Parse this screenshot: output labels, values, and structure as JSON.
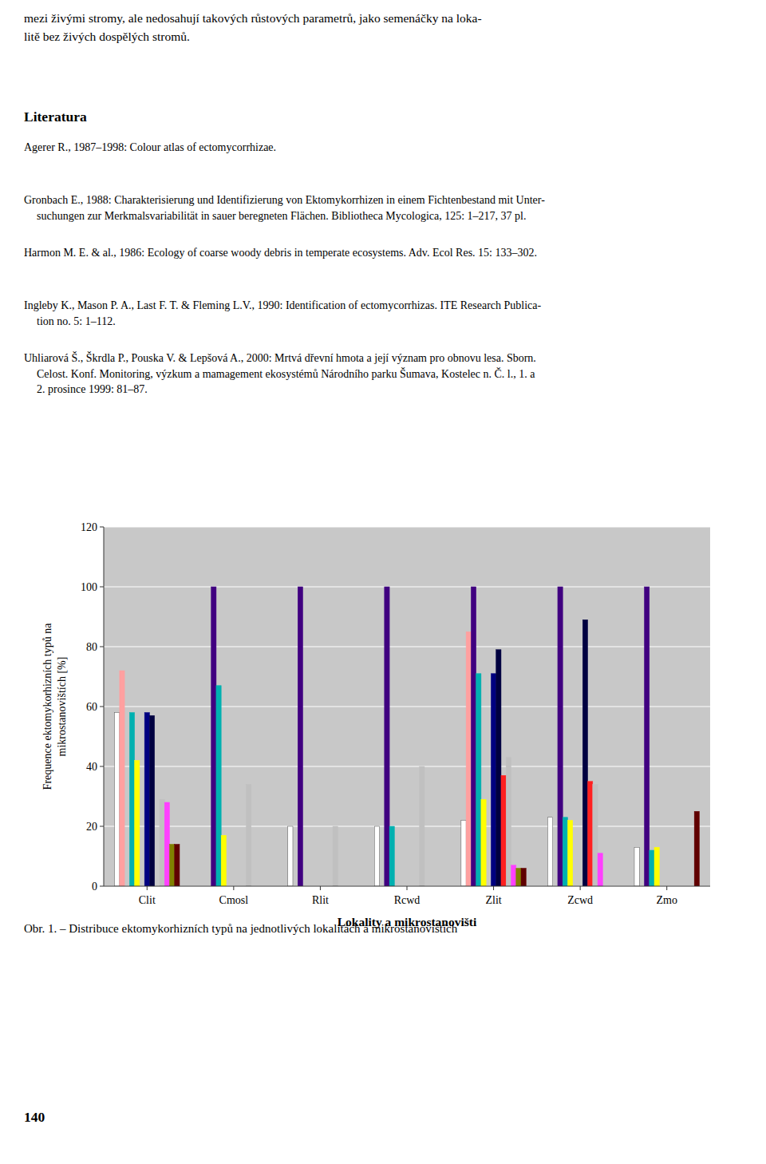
{
  "chart_data": {
    "type": "bar",
    "annotations": [
      "mezi živými stromy, ale nedosahují takových růstových parametrů, jako semenáčky na loka-\nlitě bez živých dospělých stromů.",
      "Literatura",
      "Agerer R., 1987–1998: Colour atlas of ectomycorrhizae.",
      "Gronbach E., 1988: Charakterisierung und Identifizierung von Ektomykorrhizen in einem Fichtenbestand mit Unter-\n    suchungen zur Merkmalsvariabilität in sauer beregneten Flächen. Bibliotheca Mycologica, 125: 1–217, 37 pl.",
      "Harmon M. E. & al., 1986: Ecology of coarse woody debris in temperate ecosystems. Adv. Ecol Res. 15: 133–302.",
      "Ingleby K., Mason P. A., Last F. T. & Fleming L.V., 1990: Identification of ectomycorrhizas. ITE Research Publica-\n    tion no. 5: 1–112.",
      "Uhliarová Š., Škrdla P., Pouska V. & Lepšová A., 2000: Mrtvá dřevní hmota a její význam pro obnovu lesa. Sborn.\n    Celost. Konf. Monitoring, výzkum a mamagement ekosystémů Národního parku Šumava, Kostelec n. Č. l., 1. a\n    2. prosince 1999: 81–87.",
      "Obr. 1. – Distribuce ektomykorhizních typů na jednotlivých lokalitách a mikrostanovištích",
      "140"
    ],
    "categories": [
      "Clit",
      "Cmosl",
      "Rlit",
      "Rcwd",
      "Zlit",
      "Zcwd",
      "Zmo"
    ],
    "ylabel": "Frequence ektomykorhizních typů na\nmikrostanovištích [%]",
    "xlabel": "Lokality a mikrostanovišti",
    "ylim": [
      0,
      120
    ],
    "yticks": [
      0,
      20,
      40,
      60,
      80,
      100,
      120
    ],
    "grid": true,
    "series": [
      {
        "color": "#ffffff",
        "values": [
          58,
          0,
          20,
          20,
          22,
          23,
          13
        ]
      },
      {
        "color": "#ffa0a0",
        "values": [
          72,
          0,
          0,
          0,
          85,
          0,
          0
        ]
      },
      {
        "color": "#400080",
        "values": [
          0,
          100,
          100,
          100,
          100,
          100,
          100
        ]
      },
      {
        "color": "#00b0b0",
        "values": [
          58,
          67,
          0,
          20,
          71,
          23,
          12
        ]
      },
      {
        "color": "#ffff00",
        "values": [
          42,
          17,
          0,
          0,
          29,
          22,
          13
        ]
      },
      {
        "color": "#008040",
        "values": [
          0,
          0,
          0,
          0,
          0,
          0,
          0
        ]
      },
      {
        "color": "#000080",
        "values": [
          58,
          0,
          0,
          0,
          71,
          0,
          0
        ]
      },
      {
        "color": "#000040",
        "values": [
          57,
          0,
          0,
          0,
          79,
          89,
          0
        ]
      },
      {
        "color": "#ff2020",
        "values": [
          0,
          0,
          0,
          0,
          37,
          35,
          0
        ]
      },
      {
        "color": "#c0c0c0",
        "values": [
          29,
          34,
          20,
          40,
          43,
          34,
          0
        ]
      },
      {
        "color": "#ff40ff",
        "values": [
          28,
          0,
          0,
          0,
          7,
          11,
          0
        ]
      },
      {
        "color": "#808000",
        "values": [
          14,
          0,
          0,
          0,
          6,
          0,
          0
        ]
      },
      {
        "color": "#600000",
        "values": [
          14,
          0,
          0,
          0,
          6,
          0,
          25
        ]
      }
    ]
  }
}
